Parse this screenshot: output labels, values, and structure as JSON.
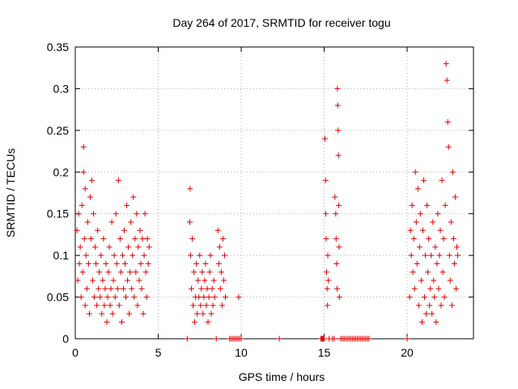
{
  "chart_data": {
    "type": "scatter",
    "title": "Day 264 of 2017, SRMTID for receiver togu",
    "xlabel": "GPS time / hours",
    "ylabel": "SRMTID / TECUs",
    "xlim": [
      0,
      24
    ],
    "ylim": [
      0,
      0.35
    ],
    "x_ticks": [
      0,
      5,
      10,
      15,
      20
    ],
    "x_tick_labels": [
      "0",
      "5",
      "10",
      "15",
      "20"
    ],
    "y_ticks": [
      0,
      0.05,
      0.1,
      0.15,
      0.2,
      0.25,
      0.3,
      0.35
    ],
    "y_tick_labels": [
      "0",
      "0.05",
      "0.1",
      "0.15",
      "0.2",
      "0.25",
      "0.3",
      "0.35"
    ],
    "grid": true,
    "marker": "+",
    "series": [
      {
        "name": "SRMTID",
        "color": "#e00000",
        "points": [
          [
            0.1,
            0.13
          ],
          [
            0.15,
            0.07
          ],
          [
            0.2,
            0.15
          ],
          [
            0.25,
            0.09
          ],
          [
            0.3,
            0.11
          ],
          [
            0.35,
            0.05
          ],
          [
            0.4,
            0.16
          ],
          [
            0.45,
            0.08
          ],
          [
            0.5,
            0.23
          ],
          [
            0.5,
            0.2
          ],
          [
            0.55,
            0.12
          ],
          [
            0.6,
            0.04
          ],
          [
            0.6,
            0.18
          ],
          [
            0.65,
            0.1
          ],
          [
            0.7,
            0.06
          ],
          [
            0.75,
            0.14
          ],
          [
            0.8,
            0.09
          ],
          [
            0.85,
            0.03
          ],
          [
            0.9,
            0.17
          ],
          [
            0.95,
            0.12
          ],
          [
            1.0,
            0.19
          ],
          [
            1.05,
            0.07
          ],
          [
            1.1,
            0.15
          ],
          [
            1.15,
            0.05
          ],
          [
            1.2,
            0.11
          ],
          [
            1.25,
            0.09
          ],
          [
            1.3,
            0.04
          ],
          [
            1.35,
            0.13
          ],
          [
            1.4,
            0.06
          ],
          [
            1.45,
            0.08
          ],
          [
            1.5,
            0.05
          ],
          [
            1.55,
            0.1
          ],
          [
            1.6,
            0.03
          ],
          [
            1.65,
            0.07
          ],
          [
            1.7,
            0.12
          ],
          [
            1.75,
            0.04
          ],
          [
            1.8,
            0.06
          ],
          [
            1.85,
            0.09
          ],
          [
            1.9,
            0.02
          ],
          [
            1.95,
            0.05
          ],
          [
            2.0,
            0.08
          ],
          [
            2.05,
            0.11
          ],
          [
            2.1,
            0.04
          ],
          [
            2.15,
            0.06
          ],
          [
            2.2,
            0.14
          ],
          [
            2.25,
            0.03
          ],
          [
            2.3,
            0.07
          ],
          [
            2.35,
            0.1
          ],
          [
            2.4,
            0.05
          ],
          [
            2.45,
            0.15
          ],
          [
            2.5,
            0.09
          ],
          [
            2.55,
            0.06
          ],
          [
            2.6,
            0.19
          ],
          [
            2.65,
            0.04
          ],
          [
            2.7,
            0.12
          ],
          [
            2.75,
            0.08
          ],
          [
            2.8,
            0.02
          ],
          [
            2.85,
            0.1
          ],
          [
            2.9,
            0.06
          ],
          [
            2.95,
            0.13
          ],
          [
            3.0,
            0.09
          ],
          [
            3.05,
            0.05
          ],
          [
            3.1,
            0.16
          ],
          [
            3.15,
            0.07
          ],
          [
            3.2,
            0.11
          ],
          [
            3.25,
            0.03
          ],
          [
            3.3,
            0.08
          ],
          [
            3.35,
            0.14
          ],
          [
            3.4,
            0.06
          ],
          [
            3.45,
            0.1
          ],
          [
            3.5,
            0.17
          ],
          [
            3.55,
            0.05
          ],
          [
            3.6,
            0.12
          ],
          [
            3.65,
            0.08
          ],
          [
            3.7,
            0.15
          ],
          [
            3.75,
            0.04
          ],
          [
            3.8,
            0.11
          ],
          [
            3.85,
            0.07
          ],
          [
            3.9,
            0.13
          ],
          [
            3.95,
            0.09
          ],
          [
            4.0,
            0.06
          ],
          [
            4.05,
            0.12
          ],
          [
            4.1,
            0.03
          ],
          [
            4.15,
            0.1
          ],
          [
            4.2,
            0.15
          ],
          [
            4.25,
            0.08
          ],
          [
            4.3,
            0.05
          ],
          [
            4.35,
            0.12
          ],
          [
            4.4,
            0.09
          ],
          [
            4.45,
            0.11
          ],
          [
            6.75,
            0.0
          ],
          [
            6.9,
            0.14
          ],
          [
            6.92,
            0.18
          ],
          [
            6.95,
            0.1
          ],
          [
            7.0,
            0.06
          ],
          [
            7.05,
            0.12
          ],
          [
            7.1,
            0.04
          ],
          [
            7.15,
            0.08
          ],
          [
            7.2,
            0.02
          ],
          [
            7.25,
            0.05
          ],
          [
            7.3,
            0.09
          ],
          [
            7.35,
            0.03
          ],
          [
            7.4,
            0.07
          ],
          [
            7.45,
            0.05
          ],
          [
            7.5,
            0.1
          ],
          [
            7.55,
            0.04
          ],
          [
            7.6,
            0.06
          ],
          [
            7.65,
            0.08
          ],
          [
            7.7,
            0.03
          ],
          [
            7.75,
            0.05
          ],
          [
            7.8,
            0.07
          ],
          [
            7.85,
            0.09
          ],
          [
            7.9,
            0.04
          ],
          [
            7.95,
            0.06
          ],
          [
            8.0,
            0.02
          ],
          [
            8.05,
            0.05
          ],
          [
            8.1,
            0.08
          ],
          [
            8.15,
            0.1
          ],
          [
            8.2,
            0.03
          ],
          [
            8.25,
            0.06
          ],
          [
            8.3,
            0.04
          ],
          [
            8.35,
            0.07
          ],
          [
            8.4,
            0.05
          ],
          [
            8.5,
            0.0
          ],
          [
            8.6,
            0.13
          ],
          [
            8.65,
            0.09
          ],
          [
            8.7,
            0.11
          ],
          [
            8.75,
            0.06
          ],
          [
            8.8,
            0.08
          ],
          [
            8.85,
            0.04
          ],
          [
            8.9,
            0.12
          ],
          [
            8.95,
            0.07
          ],
          [
            9.0,
            0.1
          ],
          [
            9.05,
            0.05
          ],
          [
            9.3,
            0.0
          ],
          [
            9.4,
            0.0
          ],
          [
            9.5,
            0.0
          ],
          [
            9.6,
            0.0
          ],
          [
            9.7,
            0.0
          ],
          [
            9.8,
            0.0
          ],
          [
            9.85,
            0.05
          ],
          [
            9.9,
            0.0
          ],
          [
            10.0,
            0.0
          ],
          [
            12.3,
            0.0
          ],
          [
            14.8,
            0.0
          ],
          [
            14.85,
            0.0
          ],
          [
            14.9,
            0.0
          ],
          [
            14.95,
            0.0
          ],
          [
            15.0,
            0.0
          ],
          [
            15.05,
            0.24
          ],
          [
            15.08,
            0.19
          ],
          [
            15.1,
            0.15
          ],
          [
            15.12,
            0.12
          ],
          [
            15.15,
            0.08
          ],
          [
            15.18,
            0.06
          ],
          [
            15.2,
            0.04
          ],
          [
            15.22,
            0.1
          ],
          [
            15.25,
            0.07
          ],
          [
            15.3,
            0.0
          ],
          [
            15.5,
            0.0
          ],
          [
            15.6,
            0.0
          ],
          [
            15.65,
            0.17
          ],
          [
            15.7,
            0.15
          ],
          [
            15.72,
            0.12
          ],
          [
            15.75,
            0.09
          ],
          [
            15.78,
            0.06
          ],
          [
            15.8,
            0.3
          ],
          [
            15.82,
            0.28
          ],
          [
            15.84,
            0.25
          ],
          [
            15.86,
            0.22
          ],
          [
            15.88,
            0.16
          ],
          [
            15.9,
            0.11
          ],
          [
            15.92,
            0.05
          ],
          [
            16.0,
            0.0
          ],
          [
            16.1,
            0.0
          ],
          [
            16.2,
            0.0
          ],
          [
            16.3,
            0.0
          ],
          [
            16.4,
            0.0
          ],
          [
            16.5,
            0.0
          ],
          [
            16.6,
            0.0
          ],
          [
            16.7,
            0.0
          ],
          [
            16.8,
            0.0
          ],
          [
            16.9,
            0.0
          ],
          [
            17.0,
            0.0
          ],
          [
            17.1,
            0.0
          ],
          [
            17.2,
            0.0
          ],
          [
            17.3,
            0.0
          ],
          [
            17.4,
            0.0
          ],
          [
            17.5,
            0.0
          ],
          [
            17.6,
            0.0
          ],
          [
            17.7,
            0.0
          ],
          [
            20.0,
            0.0
          ],
          [
            20.15,
            0.05
          ],
          [
            20.2,
            0.13
          ],
          [
            20.25,
            0.1
          ],
          [
            20.3,
            0.16
          ],
          [
            20.35,
            0.08
          ],
          [
            20.4,
            0.12
          ],
          [
            20.45,
            0.06
          ],
          [
            20.5,
            0.2
          ],
          [
            20.55,
            0.14
          ],
          [
            20.6,
            0.09
          ],
          [
            20.65,
            0.18
          ],
          [
            20.7,
            0.04
          ],
          [
            20.75,
            0.11
          ],
          [
            20.8,
            0.15
          ],
          [
            20.85,
            0.07
          ],
          [
            20.9,
            0.02
          ],
          [
            20.95,
            0.13
          ],
          [
            21.0,
            0.19
          ],
          [
            21.05,
            0.05
          ],
          [
            21.1,
            0.1
          ],
          [
            21.15,
            0.03
          ],
          [
            21.2,
            0.16
          ],
          [
            21.25,
            0.08
          ],
          [
            21.3,
            0.12
          ],
          [
            21.35,
            0.04
          ],
          [
            21.4,
            0.06
          ],
          [
            21.45,
            0.1
          ],
          [
            21.5,
            0.03
          ],
          [
            21.55,
            0.14
          ],
          [
            21.6,
            0.07
          ],
          [
            21.65,
            0.05
          ],
          [
            21.7,
            0.11
          ],
          [
            21.75,
            0.02
          ],
          [
            21.8,
            0.09
          ],
          [
            21.85,
            0.15
          ],
          [
            21.9,
            0.06
          ],
          [
            21.95,
            0.1
          ],
          [
            22.0,
            0.13
          ],
          [
            22.05,
            0.04
          ],
          [
            22.1,
            0.19
          ],
          [
            22.15,
            0.08
          ],
          [
            22.2,
            0.12
          ],
          [
            22.25,
            0.05
          ],
          [
            22.3,
            0.16
          ],
          [
            22.35,
            0.33
          ],
          [
            22.4,
            0.31
          ],
          [
            22.45,
            0.26
          ],
          [
            22.5,
            0.23
          ],
          [
            22.55,
            0.1
          ],
          [
            22.6,
            0.07
          ],
          [
            22.65,
            0.14
          ],
          [
            22.7,
            0.04
          ],
          [
            22.75,
            0.2
          ],
          [
            22.8,
            0.12
          ],
          [
            22.85,
            0.09
          ],
          [
            22.9,
            0.17
          ],
          [
            22.95,
            0.06
          ],
          [
            23.0,
            0.11
          ],
          [
            23.05,
            0.1
          ]
        ]
      }
    ]
  }
}
